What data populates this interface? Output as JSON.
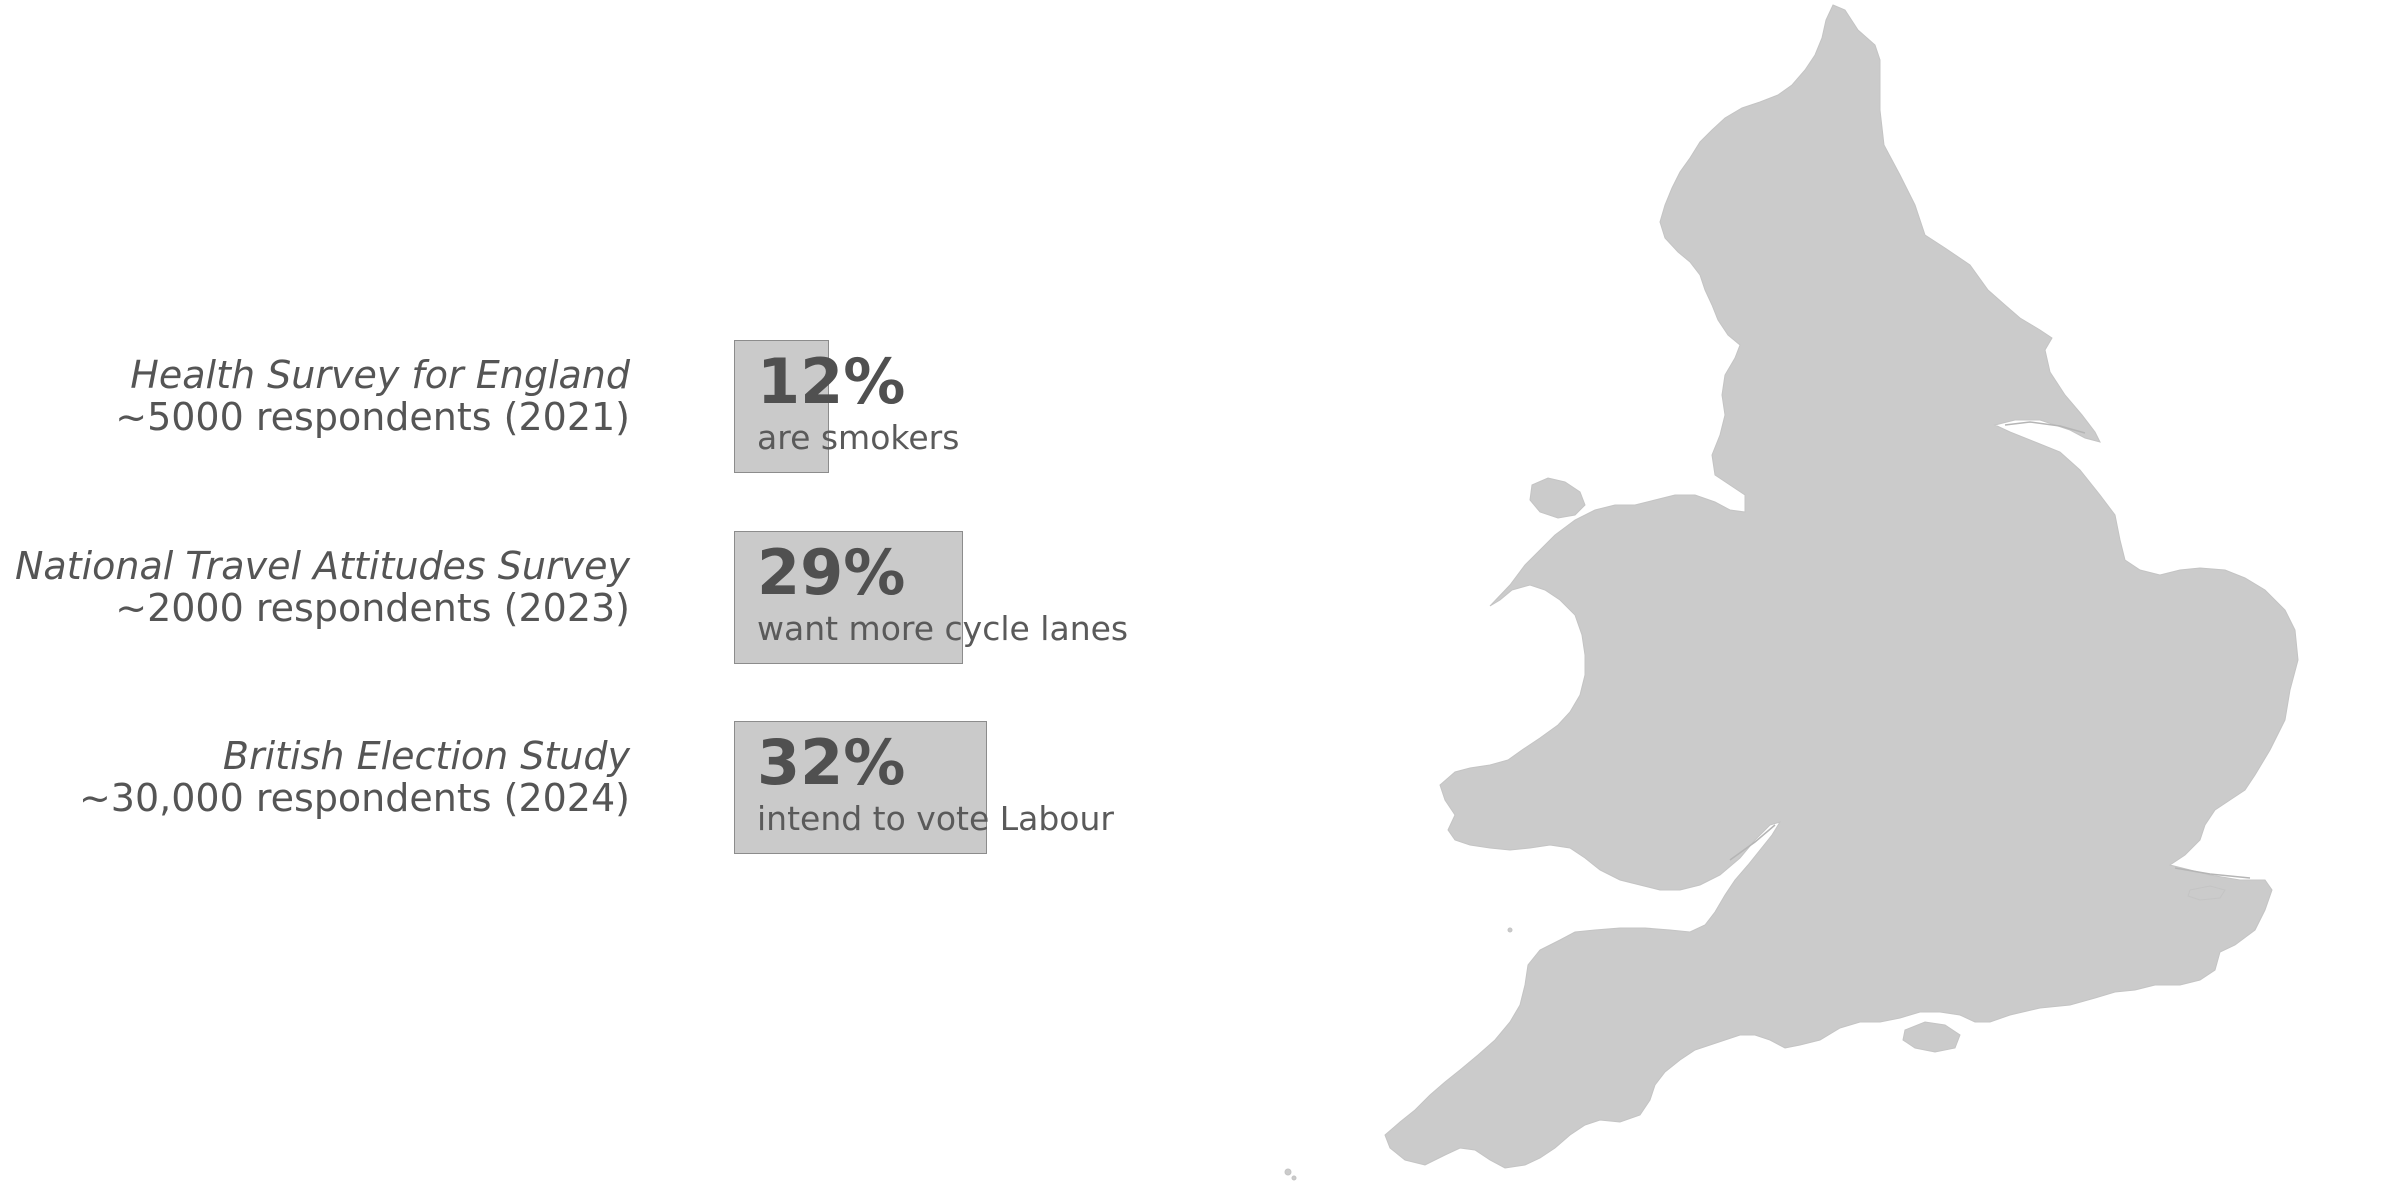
{
  "chart_data": {
    "type": "bar",
    "categories": [
      "Health Survey for England",
      "National Travel Attitudes Survey",
      "British Election Study"
    ],
    "respondents": [
      "~5000 respondents (2021)",
      "~2000 respondents (2023)",
      "~30,000 respondents (2024)"
    ],
    "values": [
      12,
      29,
      32
    ],
    "value_labels": [
      "12%",
      "29%",
      "32%"
    ],
    "captions": [
      "are smokers",
      "want more cycle lanes",
      "intend to vote Labour"
    ],
    "ylim": [
      0,
      100
    ]
  },
  "colors": {
    "bar_fill": "#cacaca",
    "bar_border": "#8c8c8c",
    "text": "#555555",
    "map_fill": "#cbcbcb"
  },
  "map": {
    "icon": "england-and-wales-map"
  }
}
